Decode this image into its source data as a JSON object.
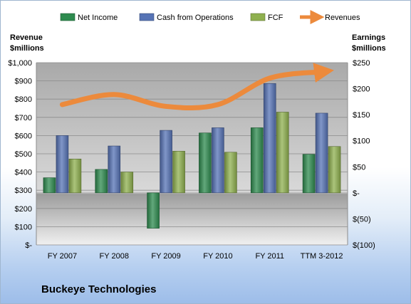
{
  "chart_data": {
    "type": "bar",
    "title": "",
    "company": "Buckeye Technologies",
    "categories": [
      "FY 2007",
      "FY 2008",
      "FY 2009",
      "FY 2010",
      "FY 2011",
      "TTM 3-2012"
    ],
    "left_axis": {
      "label_line1": "Revenue",
      "label_line2": "$millions",
      "range": [
        0,
        1000
      ],
      "ticks": [
        0,
        100,
        200,
        300,
        400,
        500,
        600,
        700,
        800,
        900,
        1000
      ],
      "tick_labels": [
        "$-",
        "$100",
        "$200",
        "$300",
        "$400",
        "$500",
        "$600",
        "$700",
        "$800",
        "$900",
        "$1,000"
      ]
    },
    "right_axis": {
      "label_line1": "Earnings",
      "label_line2": "$millions",
      "range": [
        -100,
        250
      ],
      "ticks": [
        -100,
        -50,
        0,
        50,
        100,
        150,
        200,
        250
      ],
      "tick_labels": [
        "$(100)",
        "$(50)",
        "$-",
        "$50",
        "$100",
        "$150",
        "$200",
        "$250"
      ]
    },
    "series": [
      {
        "name": "Net Income",
        "axis": "right",
        "kind": "bar",
        "color": "#2e8b4f",
        "values": [
          29,
          45,
          -68,
          115,
          125,
          74
        ]
      },
      {
        "name": "Cash from Operations",
        "axis": "right",
        "kind": "bar",
        "color": "#5673b5",
        "values": [
          110,
          90,
          120,
          125,
          210,
          153
        ]
      },
      {
        "name": "FCF",
        "axis": "right",
        "kind": "bar",
        "color": "#8fb04f",
        "values": [
          65,
          40,
          80,
          78,
          155,
          89
        ]
      },
      {
        "name": "Revenues",
        "axis": "left",
        "kind": "line",
        "color": "#ec8a3c",
        "values": [
          770,
          825,
          760,
          770,
          915,
          950
        ]
      }
    ],
    "legend_position": "top",
    "grid": true
  }
}
